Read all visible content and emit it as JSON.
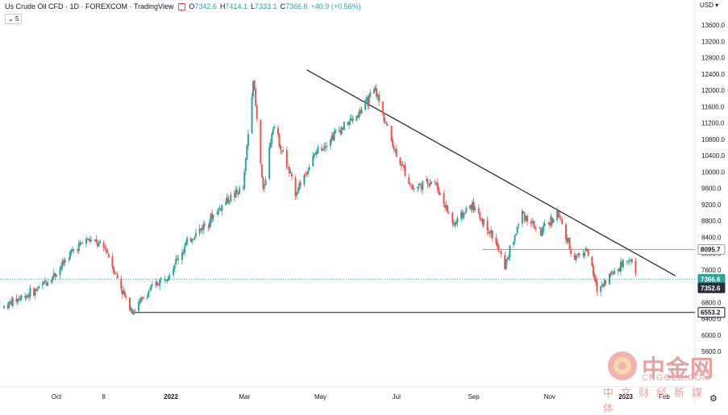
{
  "header": {
    "symbol": "Us Crude Oil CFD · 1D · FOREXCOM · TradingView",
    "open_label": "O",
    "open": "7342.6",
    "high_label": "H",
    "high": "7414.1",
    "low_label": "L",
    "low": "7333.1",
    "close_label": "C",
    "close": "7366.6",
    "change": "+40.9 (+0.56%)"
  },
  "indicator_badge": "5",
  "currency": "USD",
  "watermark": {
    "main": "中金网",
    "sub": "CNGOLD.COM",
    "cn": "中文财经新媒体"
  },
  "colors": {
    "up": "#26a69a",
    "down": "#ef5350",
    "trendline": "#2a2e39",
    "accent": "#f23645"
  },
  "icons": {
    "settings": "gear-icon",
    "market": "market-status-icon"
  },
  "chart_data": {
    "type": "candlestick",
    "title": "Us Crude Oil CFD · 1D · FOREXCOM · TradingView",
    "ylim": [
      5600,
      13800
    ],
    "y_ticks": [
      "13600.0",
      "13200.0",
      "12800.0",
      "12400.0",
      "12000.0",
      "11600.0",
      "11200.0",
      "10800.0",
      "10400.0",
      "10000.0",
      "9600.0",
      "9200.0",
      "8800.0",
      "8400.0",
      "8000.0",
      "7600.0",
      "7200.0",
      "6800.0",
      "6400.0",
      "6000.0",
      "5600.0"
    ],
    "x_ticks": [
      "Oct",
      "8",
      "2022",
      "Mar",
      "May",
      "Jul",
      "Sep",
      "Nov",
      "2023",
      "Feb"
    ],
    "price_labels": [
      {
        "value": 8095.7,
        "text": "8095.7",
        "style": "line"
      },
      {
        "value": 7366.6,
        "text": "7366.6",
        "style": "current"
      },
      {
        "value": 7352.6,
        "text": "7352.6",
        "style": "dark"
      },
      {
        "value": 6553.2,
        "text": "6553.2",
        "style": "support"
      }
    ],
    "horizontal_lines": [
      {
        "name": "resistance",
        "value": 8095.7
      },
      {
        "name": "support",
        "value": 6553.2
      }
    ],
    "trendline": {
      "from": [
        "Apr-2022",
        12400
      ],
      "to": [
        "Jan-2023",
        7550
      ]
    },
    "series": [
      {
        "points": [
          [
            "2021-08-20",
            6700
          ],
          [
            "2021-09-01",
            6900
          ],
          [
            "2021-09-15",
            7100
          ],
          [
            "2021-09-30",
            7500
          ],
          [
            "2021-10-15",
            8100
          ],
          [
            "2021-10-26",
            8350
          ],
          [
            "2021-11-10",
            8100
          ],
          [
            "2021-11-26",
            6850
          ],
          [
            "2021-12-02",
            6600
          ],
          [
            "2021-12-15",
            7100
          ],
          [
            "2021-12-31",
            7550
          ],
          [
            "2022-01-15",
            8300
          ],
          [
            "2022-01-31",
            8800
          ],
          [
            "2022-02-15",
            9300
          ],
          [
            "2022-02-28",
            9600
          ],
          [
            "2022-03-08",
            12300
          ],
          [
            "2022-03-16",
            9500
          ],
          [
            "2022-03-24",
            11200
          ],
          [
            "2022-04-11",
            9500
          ],
          [
            "2022-04-28",
            10500
          ],
          [
            "2022-05-15",
            11000
          ],
          [
            "2022-05-31",
            11400
          ],
          [
            "2022-06-14",
            12000
          ],
          [
            "2022-06-30",
            10500
          ],
          [
            "2022-07-14",
            9600
          ],
          [
            "2022-07-31",
            9800
          ],
          [
            "2022-08-16",
            8700
          ],
          [
            "2022-08-30",
            9200
          ],
          [
            "2022-09-15",
            8500
          ],
          [
            "2022-09-26",
            7700
          ],
          [
            "2022-10-10",
            9000
          ],
          [
            "2022-10-25",
            8500
          ],
          [
            "2022-11-07",
            9000
          ],
          [
            "2022-11-20",
            7900
          ],
          [
            "2022-12-01",
            8100
          ],
          [
            "2022-12-09",
            7100
          ],
          [
            "2022-12-20",
            7500
          ],
          [
            "2023-01-04",
            7900
          ],
          [
            "2023-01-10",
            7366.6
          ]
        ]
      }
    ]
  }
}
